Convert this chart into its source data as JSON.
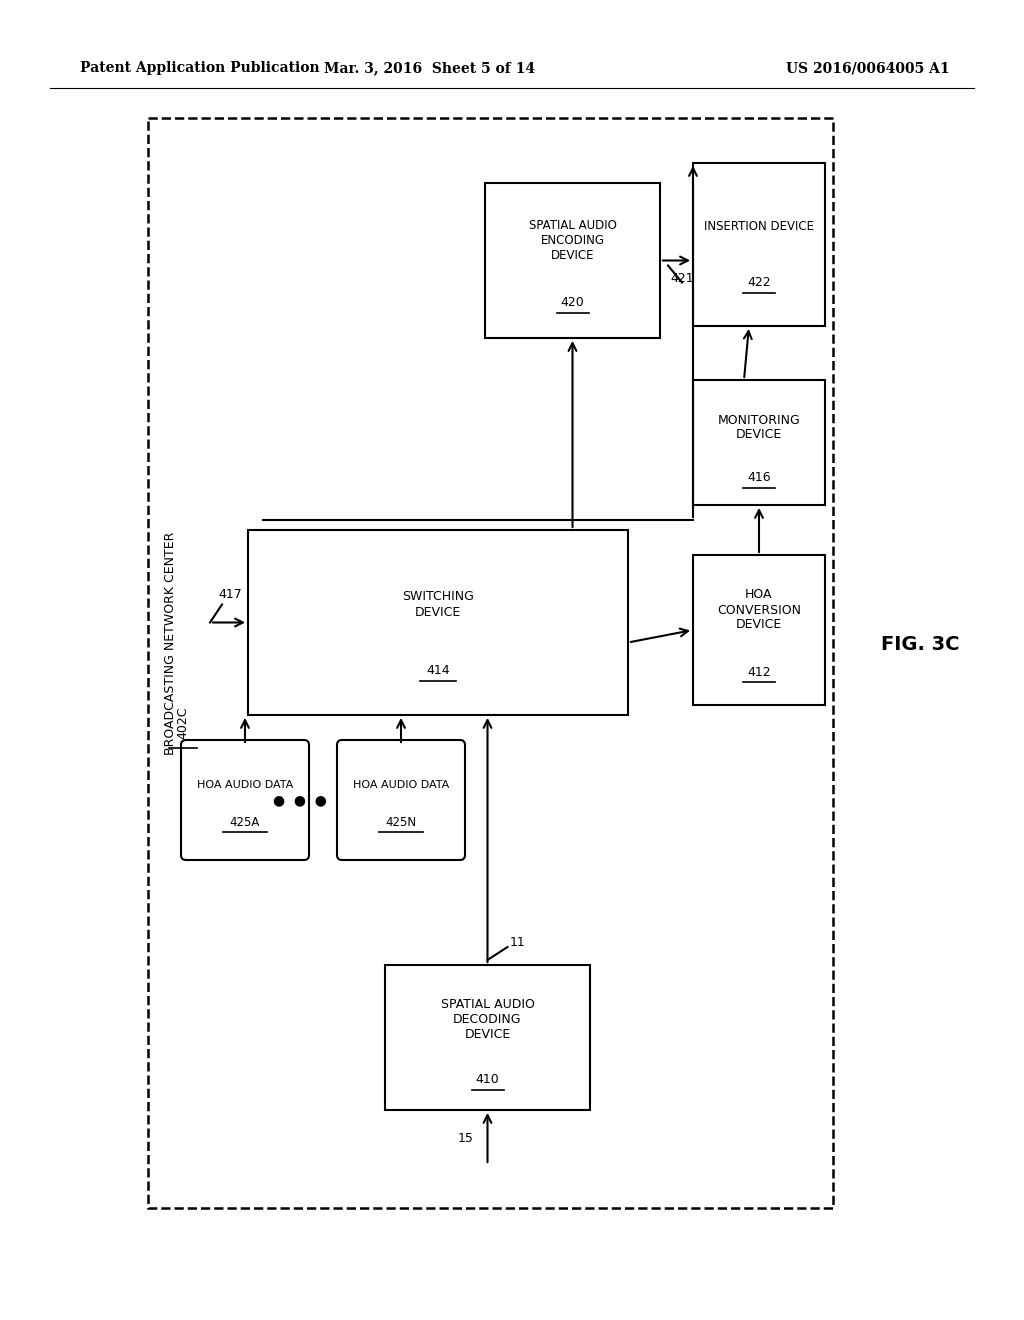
{
  "page_header_left": "Patent Application Publication",
  "page_header_mid": "Mar. 3, 2016  Sheet 5 of 14",
  "page_header_right": "US 2016/0064005 A1",
  "fig_label": "FIG. 3C",
  "background_color": "#ffffff"
}
